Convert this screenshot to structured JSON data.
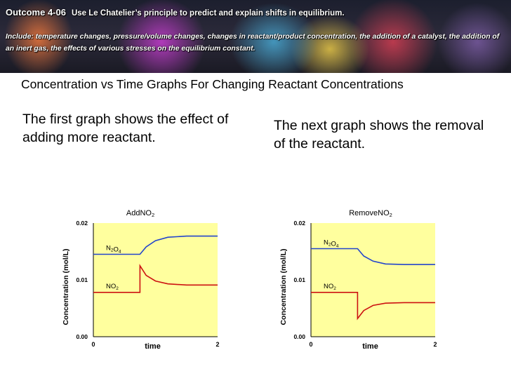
{
  "banner": {
    "outcome": "Outcome 4-06",
    "description": "Use Le Chatelier’s principle to predict and explain shifts in equilibrium.",
    "include_text": "Include: temperature changes, pressure/volume changes, changes in reactant/product concentration, the addition of a catalyst, the addition of an inert gas, the effects of various stresses on the equilibrium constant."
  },
  "heading": "Concentration vs Time Graphs For Changing Reactant Concentrations",
  "left_text": "The first graph shows the effect of adding more reactant.",
  "right_text": "The next graph shows the removal of the reactant.",
  "colors": {
    "n2o4": "#2244cc",
    "no2": "#cc1111",
    "plot_bg": "#ffff9e"
  },
  "chart_data": [
    {
      "type": "line",
      "title": "Add NO2",
      "xlabel": "time",
      "ylabel": "Concentration (mol/L)",
      "xlim": [
        0,
        2
      ],
      "ylim": [
        0,
        0.02
      ],
      "xticks": [
        "0",
        "2"
      ],
      "yticks": [
        "0.00",
        "0.01",
        "0.02"
      ],
      "series": [
        {
          "name": "N2O4",
          "color_key": "n2o4",
          "points": [
            [
              0,
              0.0145
            ],
            [
              0.75,
              0.0145
            ],
            [
              0.85,
              0.0158
            ],
            [
              1.0,
              0.0169
            ],
            [
              1.2,
              0.0175
            ],
            [
              1.5,
              0.0177
            ],
            [
              2.0,
              0.0177
            ]
          ]
        },
        {
          "name": "NO2",
          "color_key": "no2",
          "points": [
            [
              0,
              0.0078
            ],
            [
              0.75,
              0.0078
            ],
            [
              0.75,
              0.0125
            ],
            [
              0.85,
              0.0108
            ],
            [
              1.0,
              0.0098
            ],
            [
              1.2,
              0.0093
            ],
            [
              1.5,
              0.0091
            ],
            [
              2.0,
              0.0091
            ]
          ]
        }
      ]
    },
    {
      "type": "line",
      "title": "Remove NO2",
      "xlabel": "time",
      "ylabel": "Concentration (mol/L)",
      "xlim": [
        0,
        2
      ],
      "ylim": [
        0,
        0.02
      ],
      "xticks": [
        "0",
        "2"
      ],
      "yticks": [
        "0.00",
        "0.01",
        "0.02"
      ],
      "series": [
        {
          "name": "N2O4",
          "color_key": "n2o4",
          "points": [
            [
              0,
              0.0155
            ],
            [
              0.75,
              0.0155
            ],
            [
              0.85,
              0.0142
            ],
            [
              1.0,
              0.0133
            ],
            [
              1.2,
              0.0128
            ],
            [
              1.5,
              0.0127
            ],
            [
              2.0,
              0.0127
            ]
          ]
        },
        {
          "name": "NO2",
          "color_key": "no2",
          "points": [
            [
              0,
              0.0078
            ],
            [
              0.75,
              0.0078
            ],
            [
              0.75,
              0.0032
            ],
            [
              0.85,
              0.0046
            ],
            [
              1.0,
              0.0055
            ],
            [
              1.2,
              0.0059
            ],
            [
              1.5,
              0.006
            ],
            [
              2.0,
              0.006
            ]
          ]
        }
      ]
    }
  ]
}
